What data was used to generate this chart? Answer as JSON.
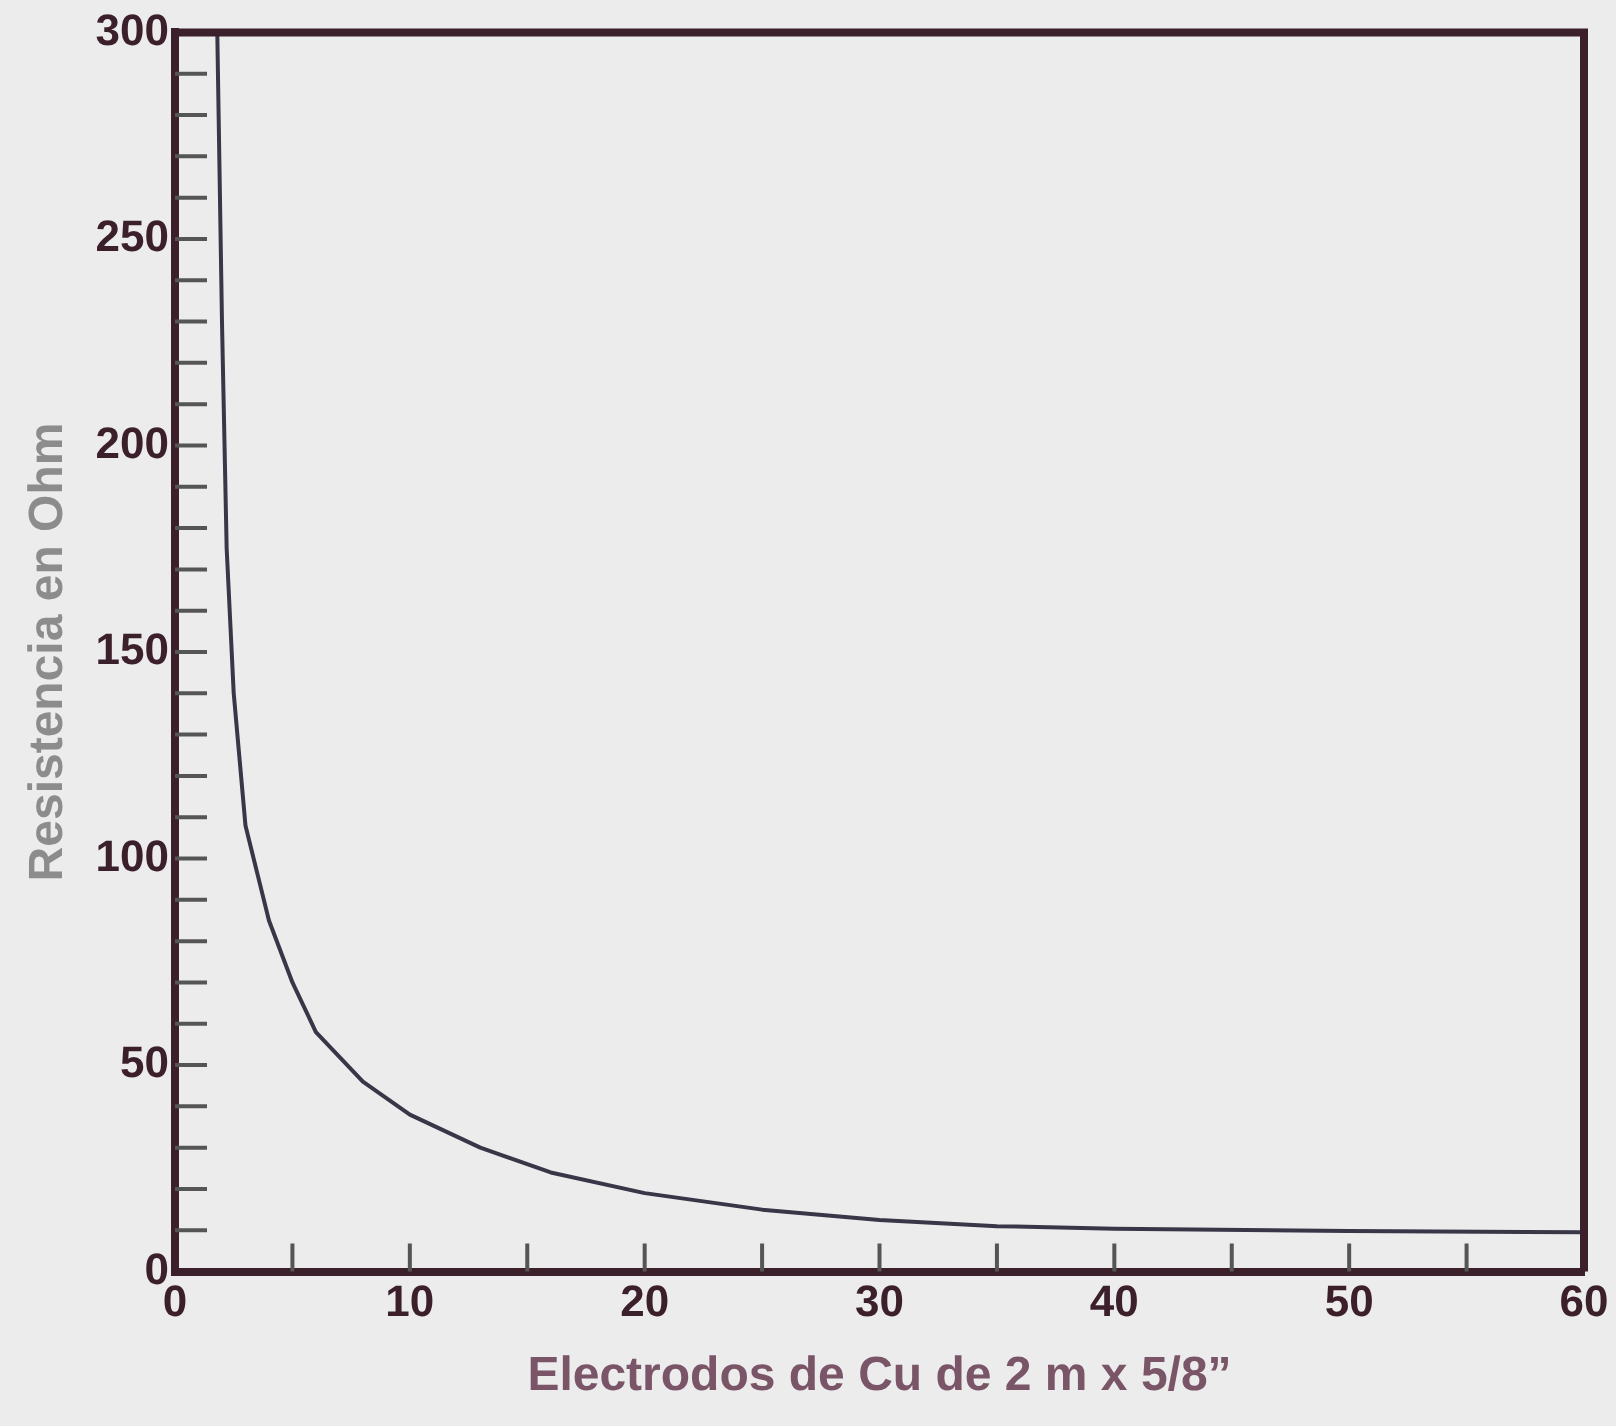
{
  "chart_data": {
    "type": "line",
    "xlabel": "Electrodos de Cu de 2 m x 5/8”",
    "ylabel": "Resistencia en Ohm",
    "x": [
      1.8,
      2,
      2.2,
      2.5,
      3,
      4,
      5,
      6,
      8,
      10,
      13,
      16,
      20,
      25,
      30,
      35,
      40,
      50,
      60
    ],
    "series": [
      {
        "color": "#3a3648",
        "values": [
          300,
          230,
          175,
          140,
          108,
          85,
          70,
          58,
          46,
          38,
          30,
          24,
          19,
          15,
          12.5,
          11,
          10.4,
          9.8,
          9.5
        ]
      }
    ],
    "xlim": [
      0,
      60
    ],
    "ylim": [
      0,
      300
    ],
    "xticks": [
      0,
      {
        "value": 5,
        "label": null
      },
      10,
      {
        "value": 15,
        "label": null
      },
      20,
      {
        "value": 25,
        "label": null
      },
      30,
      {
        "value": 35,
        "label": null
      },
      40,
      {
        "value": 45,
        "label": null
      },
      50,
      {
        "value": 55,
        "label": null
      },
      60
    ],
    "yticks": [
      0,
      {
        "value": 10,
        "label": null
      },
      {
        "value": 20,
        "label": null
      },
      {
        "value": 30,
        "label": null
      },
      {
        "value": 40,
        "label": null
      },
      50,
      {
        "value": 60,
        "label": null
      },
      {
        "value": 70,
        "label": null
      },
      {
        "value": 80,
        "label": null
      },
      {
        "value": 90,
        "label": null
      },
      100,
      {
        "value": 110,
        "label": null
      },
      {
        "value": 120,
        "label": null
      },
      {
        "value": 130,
        "label": null
      },
      {
        "value": 140,
        "label": null
      },
      150,
      {
        "value": 160,
        "label": null
      },
      {
        "value": 170,
        "label": null
      },
      {
        "value": 180,
        "label": null
      },
      {
        "value": 190,
        "label": null
      },
      200,
      {
        "value": 210,
        "label": null
      },
      {
        "value": 220,
        "label": null
      },
      {
        "value": 230,
        "label": null
      },
      {
        "value": 240,
        "label": null
      },
      250,
      {
        "value": 260,
        "label": null
      },
      {
        "value": 270,
        "label": null
      },
      {
        "value": 280,
        "label": null
      },
      {
        "value": 290,
        "label": null
      },
      300
    ],
    "marker": "none",
    "line_style": "solid",
    "legend": false,
    "grid": false
  }
}
